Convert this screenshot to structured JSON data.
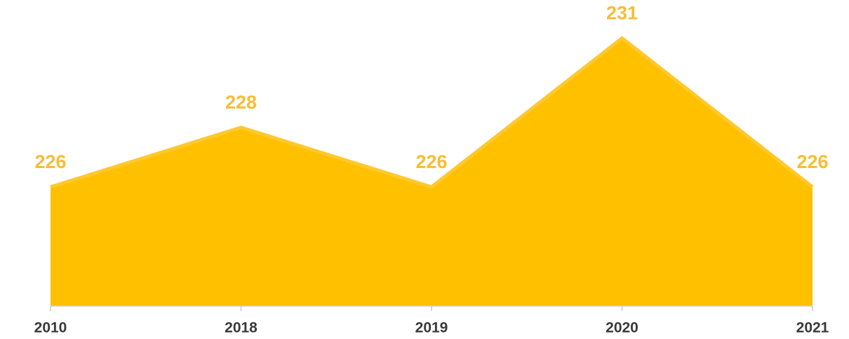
{
  "chart_data": {
    "type": "area",
    "categories": [
      "2010",
      "2018",
      "2019",
      "2020",
      "2021"
    ],
    "values": [
      226,
      228,
      226,
      231,
      226
    ],
    "color": "#ffc000",
    "line_color": "#ffc82e",
    "label_color": "#f8bd36",
    "ylim": [
      222,
      232
    ]
  }
}
